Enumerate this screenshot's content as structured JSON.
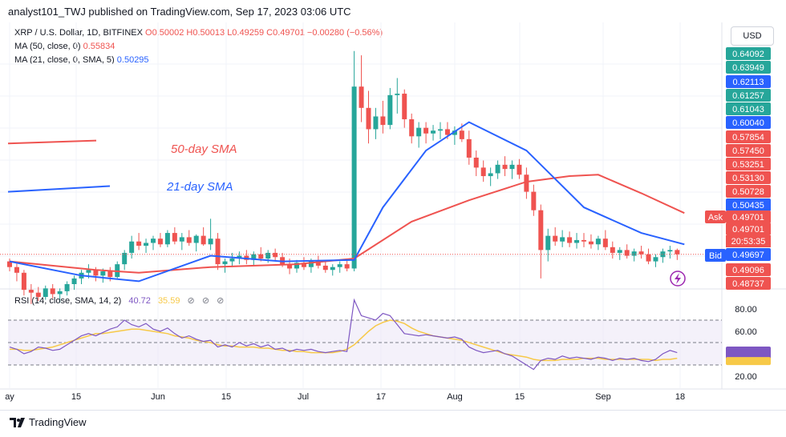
{
  "header": {
    "publish_line": "analyst101_TWJ published on TradingView.com, Sep 17, 2023 03:06 UTC"
  },
  "legend": {
    "symbol": "XRP / U.S. Dollar, 1D, BITFINEX",
    "open": "O0.50002",
    "high": "H0.50013",
    "low": "L0.49259",
    "close": "C0.49701",
    "change": "−0.00280 (−0.56%)",
    "ma50_label": "MA (50, close, 0)",
    "ma50_value": "0.55834",
    "ma21_label": "MA (21, close, 0, SMA, 5)",
    "ma21_value": "0.50295"
  },
  "currency_button": "USD",
  "annotations": {
    "sma50": "50-day SMA",
    "sma21": "21-day SMA"
  },
  "price_axis": {
    "labels": [
      "0.64092",
      "0.63949",
      "0.62113",
      "0.61257",
      "0.61043",
      "0.60040",
      "0.57854",
      "0.57450",
      "0.53251",
      "0.53130",
      "0.50728",
      "0.50435",
      "0.49701",
      "0.49701",
      "0.49697",
      "0.49096",
      "0.48737"
    ],
    "ask_label": "Ask",
    "bid_label": "Bid",
    "countdown": "20:53:35",
    "colors": {
      "ask": "#ef5350",
      "bid": "#2962ff",
      "ma50": "#ef5350",
      "ma21": "#2962ff"
    }
  },
  "rsi": {
    "label": "RSI (14, close, SMA, 14, 2)",
    "value": "40.72",
    "sma_value": "35.59",
    "ticks": [
      "80.00",
      "60.00",
      "40.00",
      "20.00"
    ],
    "lines": [
      70,
      50,
      30
    ],
    "colors": {
      "rsi": "#7e57c2",
      "sma": "#f7c948",
      "band": "#ede7f6"
    }
  },
  "x_axis": {
    "labels": [
      "ay",
      "15",
      "Jun",
      "15",
      "Jul",
      "17",
      "Aug",
      "15",
      "Sep",
      "18"
    ]
  },
  "footer": {
    "brand": "TradingView"
  },
  "chart_data": {
    "type": "candlestick",
    "title": "XRP / U.S. Dollar, 1D, BITFINEX",
    "candles_ohlc": [
      [
        0.492,
        0.494,
        0.485,
        0.488
      ],
      [
        0.488,
        0.491,
        0.478,
        0.484
      ],
      [
        0.484,
        0.486,
        0.468,
        0.472
      ],
      [
        0.472,
        0.476,
        0.462,
        0.47
      ],
      [
        0.47,
        0.474,
        0.464,
        0.467
      ],
      [
        0.467,
        0.475,
        0.465,
        0.473
      ],
      [
        0.473,
        0.476,
        0.466,
        0.469
      ],
      [
        0.469,
        0.473,
        0.463,
        0.471
      ],
      [
        0.471,
        0.478,
        0.468,
        0.476
      ],
      [
        0.476,
        0.482,
        0.472,
        0.48
      ],
      [
        0.48,
        0.486,
        0.476,
        0.484
      ],
      [
        0.484,
        0.49,
        0.48,
        0.486
      ],
      [
        0.486,
        0.488,
        0.478,
        0.482
      ],
      [
        0.482,
        0.487,
        0.477,
        0.485
      ],
      [
        0.485,
        0.488,
        0.478,
        0.481
      ],
      [
        0.481,
        0.492,
        0.48,
        0.49
      ],
      [
        0.49,
        0.5,
        0.486,
        0.498
      ],
      [
        0.498,
        0.51,
        0.494,
        0.506
      ],
      [
        0.506,
        0.512,
        0.5,
        0.503
      ],
      [
        0.503,
        0.508,
        0.498,
        0.505
      ],
      [
        0.505,
        0.51,
        0.5,
        0.508
      ],
      [
        0.508,
        0.512,
        0.502,
        0.504
      ],
      [
        0.504,
        0.514,
        0.502,
        0.512
      ],
      [
        0.512,
        0.516,
        0.504,
        0.506
      ],
      [
        0.506,
        0.512,
        0.5,
        0.509
      ],
      [
        0.509,
        0.514,
        0.503,
        0.505
      ],
      [
        0.505,
        0.511,
        0.499,
        0.51
      ],
      [
        0.51,
        0.516,
        0.503,
        0.504
      ],
      [
        0.504,
        0.522,
        0.5,
        0.508
      ],
      [
        0.508,
        0.512,
        0.486,
        0.49
      ],
      [
        0.49,
        0.494,
        0.484,
        0.492
      ],
      [
        0.492,
        0.498,
        0.488,
        0.494
      ],
      [
        0.494,
        0.499,
        0.49,
        0.496
      ],
      [
        0.496,
        0.5,
        0.49,
        0.493
      ],
      [
        0.493,
        0.499,
        0.489,
        0.497
      ],
      [
        0.497,
        0.502,
        0.492,
        0.494
      ],
      [
        0.494,
        0.5,
        0.491,
        0.498
      ],
      [
        0.498,
        0.501,
        0.492,
        0.495
      ],
      [
        0.495,
        0.498,
        0.488,
        0.49
      ],
      [
        0.49,
        0.494,
        0.483,
        0.487
      ],
      [
        0.487,
        0.493,
        0.484,
        0.491
      ],
      [
        0.491,
        0.495,
        0.486,
        0.488
      ],
      [
        0.488,
        0.494,
        0.484,
        0.492
      ],
      [
        0.492,
        0.496,
        0.487,
        0.489
      ],
      [
        0.489,
        0.492,
        0.484,
        0.486
      ],
      [
        0.486,
        0.49,
        0.482,
        0.488
      ],
      [
        0.488,
        0.492,
        0.484,
        0.49
      ],
      [
        0.49,
        0.493,
        0.485,
        0.487
      ],
      [
        0.487,
        0.64,
        0.485,
        0.615
      ],
      [
        0.615,
        0.637,
        0.59,
        0.6
      ],
      [
        0.6,
        0.612,
        0.575,
        0.585
      ],
      [
        0.585,
        0.6,
        0.578,
        0.594
      ],
      [
        0.594,
        0.605,
        0.582,
        0.588
      ],
      [
        0.588,
        0.614,
        0.585,
        0.609
      ],
      [
        0.609,
        0.621,
        0.596,
        0.61
      ],
      [
        0.61,
        0.613,
        0.586,
        0.592
      ],
      [
        0.592,
        0.596,
        0.575,
        0.58
      ],
      [
        0.58,
        0.59,
        0.572,
        0.586
      ],
      [
        0.586,
        0.59,
        0.575,
        0.582
      ],
      [
        0.582,
        0.588,
        0.577,
        0.584
      ],
      [
        0.584,
        0.59,
        0.578,
        0.585
      ],
      [
        0.585,
        0.59,
        0.578,
        0.581
      ],
      [
        0.581,
        0.587,
        0.574,
        0.584
      ],
      [
        0.584,
        0.589,
        0.576,
        0.578
      ],
      [
        0.578,
        0.584,
        0.56,
        0.565
      ],
      [
        0.565,
        0.57,
        0.552,
        0.558
      ],
      [
        0.558,
        0.563,
        0.548,
        0.552
      ],
      [
        0.552,
        0.558,
        0.545,
        0.554
      ],
      [
        0.554,
        0.563,
        0.55,
        0.56
      ],
      [
        0.56,
        0.566,
        0.552,
        0.557
      ],
      [
        0.557,
        0.563,
        0.55,
        0.56
      ],
      [
        0.56,
        0.564,
        0.55,
        0.553
      ],
      [
        0.553,
        0.558,
        0.536,
        0.541
      ],
      [
        0.541,
        0.546,
        0.524,
        0.528
      ],
      [
        0.528,
        0.532,
        0.48,
        0.5
      ],
      [
        0.5,
        0.515,
        0.492,
        0.51
      ],
      [
        0.51,
        0.516,
        0.503,
        0.506
      ],
      [
        0.506,
        0.514,
        0.502,
        0.509
      ],
      [
        0.509,
        0.513,
        0.502,
        0.505
      ],
      [
        0.505,
        0.512,
        0.501,
        0.507
      ],
      [
        0.507,
        0.512,
        0.502,
        0.506
      ],
      [
        0.506,
        0.511,
        0.501,
        0.504
      ],
      [
        0.504,
        0.51,
        0.5,
        0.508
      ],
      [
        0.508,
        0.514,
        0.5,
        0.502
      ],
      [
        0.502,
        0.506,
        0.494,
        0.498
      ],
      [
        0.498,
        0.502,
        0.493,
        0.5
      ],
      [
        0.5,
        0.504,
        0.494,
        0.496
      ],
      [
        0.496,
        0.501,
        0.492,
        0.499
      ],
      [
        0.499,
        0.503,
        0.494,
        0.497
      ],
      [
        0.497,
        0.501,
        0.49,
        0.492
      ],
      [
        0.492,
        0.497,
        0.488,
        0.495
      ],
      [
        0.495,
        0.501,
        0.491,
        0.499
      ],
      [
        0.499,
        0.503,
        0.494,
        0.5
      ],
      [
        0.5,
        0.501,
        0.493,
        0.497
      ]
    ],
    "ma50": [
      [
        0,
        0.492
      ],
      [
        12,
        0.486
      ],
      [
        18,
        0.484
      ],
      [
        28,
        0.488
      ],
      [
        40,
        0.49
      ],
      [
        48,
        0.494
      ],
      [
        56,
        0.52
      ],
      [
        64,
        0.535
      ],
      [
        72,
        0.548
      ],
      [
        78,
        0.552
      ],
      [
        82,
        0.553
      ],
      [
        88,
        0.54
      ],
      [
        94,
        0.526
      ]
    ],
    "ma21": [
      [
        0,
        0.492
      ],
      [
        10,
        0.482
      ],
      [
        18,
        0.478
      ],
      [
        28,
        0.496
      ],
      [
        38,
        0.492
      ],
      [
        48,
        0.493
      ],
      [
        52,
        0.53
      ],
      [
        58,
        0.57
      ],
      [
        64,
        0.59
      ],
      [
        72,
        0.57
      ],
      [
        80,
        0.53
      ],
      [
        88,
        0.512
      ],
      [
        94,
        0.504
      ]
    ],
    "ma50_left_segment": [
      0.575,
      0.577
    ],
    "ma21_left_segment": [
      0.541,
      0.545
    ],
    "rsi_values": [
      46,
      44,
      40,
      42,
      46,
      45,
      43,
      44,
      48,
      52,
      56,
      58,
      56,
      59,
      62,
      64,
      70,
      66,
      64,
      67,
      62,
      60,
      63,
      58,
      54,
      56,
      53,
      51,
      52,
      46,
      48,
      46,
      50,
      47,
      49,
      46,
      48,
      44,
      45,
      42,
      44,
      43,
      44,
      42,
      41,
      42,
      43,
      42,
      88,
      74,
      72,
      70,
      76,
      74,
      66,
      58,
      57,
      56,
      57,
      56,
      55,
      54,
      55,
      53,
      46,
      43,
      41,
      42,
      43,
      40,
      38,
      34,
      30,
      26,
      34,
      36,
      35,
      38,
      36,
      37,
      36,
      35,
      37,
      36,
      34,
      36,
      35,
      36,
      34,
      33,
      35,
      40,
      43,
      41
    ],
    "rsi_sma": [
      44,
      44,
      43,
      43,
      44,
      45,
      46,
      48,
      50,
      52,
      54,
      56,
      58,
      58,
      59,
      60,
      61,
      62,
      62,
      61,
      60,
      59,
      58,
      56,
      55,
      54,
      52,
      51,
      50,
      48,
      47,
      47,
      46,
      46,
      46,
      45,
      45,
      44,
      43,
      43,
      42,
      42,
      41,
      41,
      41,
      41,
      42,
      44,
      48,
      54,
      60,
      65,
      68,
      70,
      69,
      67,
      63,
      60,
      58,
      56,
      55,
      54,
      53,
      52,
      50,
      48,
      46,
      44,
      42,
      40,
      39,
      38,
      37,
      35,
      34,
      34,
      34,
      35,
      35,
      35,
      36,
      36,
      36,
      35,
      35,
      35,
      35,
      35,
      35,
      35,
      34,
      35,
      35,
      36
    ],
    "rsi_ticks": [
      80,
      60,
      40,
      20
    ],
    "x_labels": [
      "ay",
      "15",
      "Jun",
      "15",
      "Jul",
      "17",
      "Aug",
      "15",
      "Sep",
      "18"
    ],
    "grid": true,
    "colors": {
      "up": "#26a69a",
      "down": "#ef5350"
    }
  }
}
